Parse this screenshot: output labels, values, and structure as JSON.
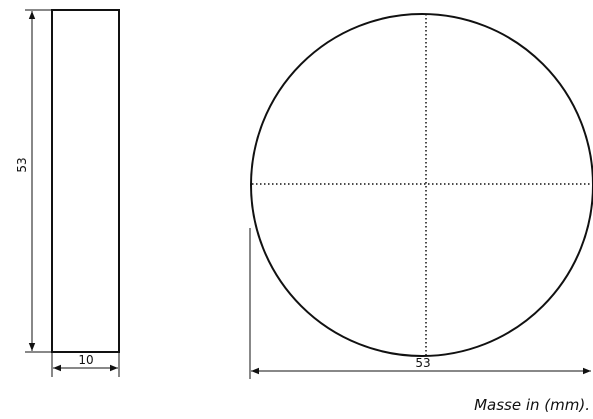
{
  "side_view": {
    "height_label": "53",
    "width_label": "10"
  },
  "front_view": {
    "diameter_label": "53"
  },
  "caption": "Masse in (mm)."
}
